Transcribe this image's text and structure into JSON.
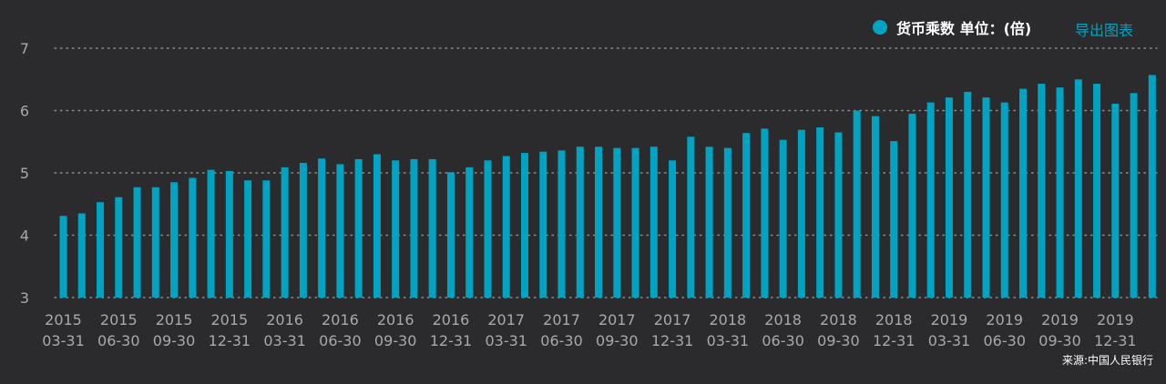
{
  "legend": {
    "label": "货币乘数 单位：(倍)"
  },
  "export_label": "导出图表",
  "source": "来源:中国人民银行",
  "colors": {
    "background": "#2b2b2d",
    "bar": "#00a3c2",
    "grid": "#8c8c8c",
    "axis_text": "#a9a9a9"
  },
  "chart_data": {
    "type": "bar",
    "ylim": [
      3,
      7
    ],
    "yticks": [
      3,
      4,
      5,
      6,
      7
    ],
    "grid": "dotted horizontal",
    "x_tick_labels": [
      [
        "2015",
        "03-31"
      ],
      [
        "2015",
        "06-30"
      ],
      [
        "2015",
        "09-30"
      ],
      [
        "2015",
        "12-31"
      ],
      [
        "2016",
        "03-31"
      ],
      [
        "2016",
        "06-30"
      ],
      [
        "2016",
        "09-30"
      ],
      [
        "2016",
        "12-31"
      ],
      [
        "2017",
        "03-31"
      ],
      [
        "2017",
        "06-30"
      ],
      [
        "2017",
        "09-30"
      ],
      [
        "2017",
        "12-31"
      ],
      [
        "2018",
        "03-31"
      ],
      [
        "2018",
        "06-30"
      ],
      [
        "2018",
        "09-30"
      ],
      [
        "2018",
        "12-31"
      ],
      [
        "2019",
        "03-31"
      ],
      [
        "2019",
        "06-30"
      ],
      [
        "2019",
        "09-30"
      ],
      [
        "2019",
        "12-31"
      ]
    ],
    "categories": [
      "2015-01",
      "2015-02",
      "2015-03",
      "2015-04",
      "2015-05",
      "2015-06",
      "2015-07",
      "2015-08",
      "2015-09",
      "2015-10",
      "2015-11",
      "2015-12",
      "2016-01",
      "2016-02",
      "2016-03",
      "2016-04",
      "2016-05",
      "2016-06",
      "2016-07",
      "2016-08",
      "2016-09",
      "2016-10",
      "2016-11",
      "2016-12",
      "2017-01",
      "2017-02",
      "2017-03",
      "2017-04",
      "2017-05",
      "2017-06",
      "2017-07",
      "2017-08",
      "2017-09",
      "2017-10",
      "2017-11",
      "2017-12",
      "2018-01",
      "2018-02",
      "2018-03",
      "2018-04",
      "2018-05",
      "2018-06",
      "2018-07",
      "2018-08",
      "2018-09",
      "2018-10",
      "2018-11",
      "2018-12",
      "2019-01",
      "2019-02",
      "2019-03",
      "2019-04",
      "2019-05",
      "2019-06",
      "2019-07",
      "2019-08",
      "2019-09",
      "2019-10",
      "2019-11",
      "2019-12"
    ],
    "values": [
      4.31,
      4.35,
      4.53,
      4.61,
      4.77,
      4.77,
      4.85,
      4.92,
      5.05,
      5.03,
      4.88,
      4.88,
      5.09,
      5.16,
      5.23,
      5.14,
      5.22,
      5.3,
      5.2,
      5.22,
      5.22,
      5.01,
      5.09,
      5.2,
      5.27,
      5.32,
      5.34,
      5.36,
      5.42,
      5.42,
      5.4,
      5.4,
      5.42,
      5.2,
      5.58,
      5.42,
      5.4,
      5.64,
      5.71,
      5.53,
      5.69,
      5.73,
      5.65,
      6.0,
      5.91,
      5.51,
      5.95,
      6.13,
      6.21,
      6.3,
      6.21,
      6.13,
      6.35,
      6.43,
      6.37,
      6.5,
      6.43,
      6.11,
      6.28,
      6.57
    ]
  }
}
